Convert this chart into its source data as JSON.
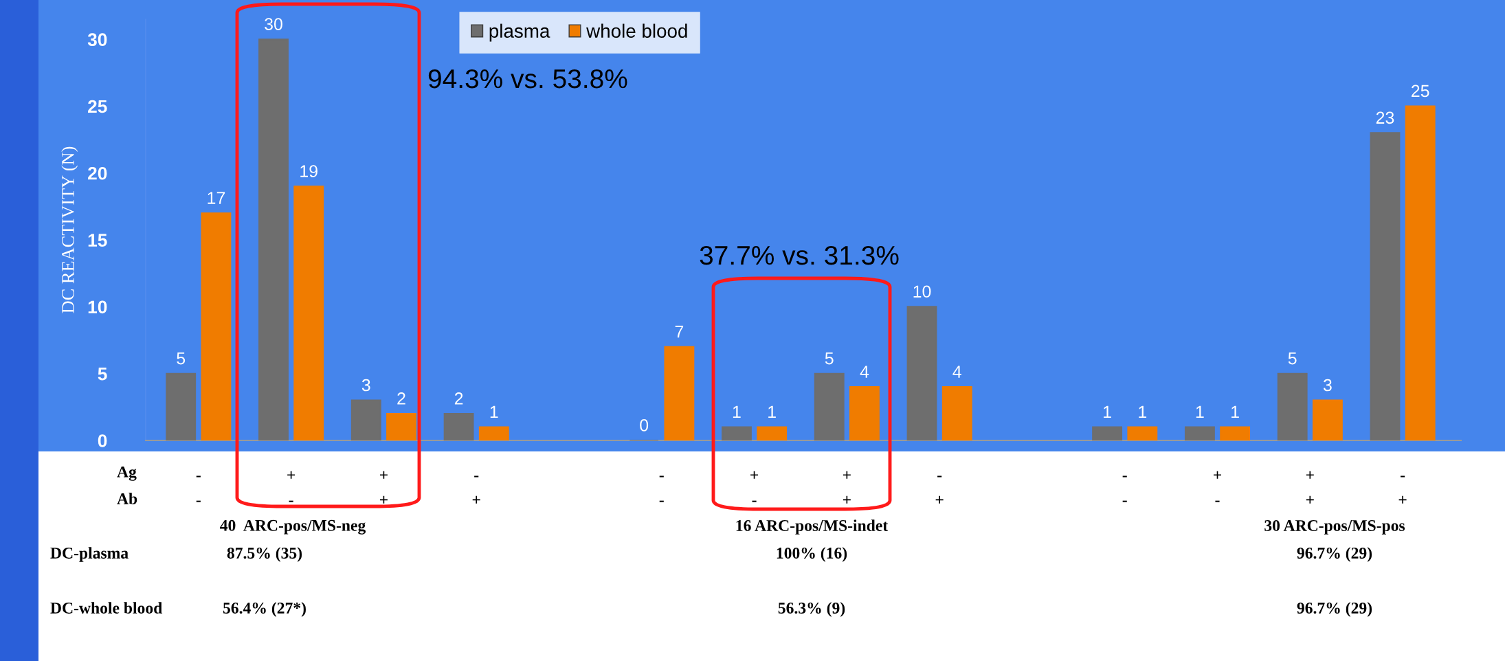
{
  "chart_data": {
    "type": "bar",
    "categories": [
      "-\n-",
      "+\n-",
      "+\n+",
      "-\n+",
      null,
      "-\n-",
      "+\n-",
      "+\n+",
      "-\n+",
      null,
      "-\n-",
      "+\n-",
      "+\n+",
      "-\n+"
    ],
    "series": [
      {
        "name": "plasma",
        "color": "#6e6e6e",
        "values": [
          5,
          30,
          3,
          2,
          null,
          0,
          1,
          5,
          10,
          null,
          1,
          1,
          5,
          23
        ]
      },
      {
        "name": "whole blood",
        "color": "#f07c00",
        "values": [
          17,
          19,
          2,
          1,
          null,
          7,
          1,
          4,
          4,
          null,
          1,
          1,
          3,
          25
        ]
      }
    ],
    "ylabel": "DC REACTIVITY (N)",
    "ylim": [
      0,
      31.5
    ],
    "yticks": [
      0,
      5,
      10,
      15,
      20,
      25,
      30
    ],
    "data_labels": true,
    "legend": "top",
    "grid": false,
    "annotations": [
      "94.3% vs. 53.8%",
      "37.7% vs. 31.3%",
      "Ag",
      "Ab",
      "40  ARC-pos/MS-neg",
      "16 ARC-pos/MS-indet",
      "30 ARC-pos/MS-pos",
      "DC-plasma",
      "87.5% (35)",
      "100% (16)",
      "96.7% (29)",
      "DC-whole blood",
      "56.4% (27*)",
      "56.3% (9)",
      "96.7% (29)"
    ]
  }
}
